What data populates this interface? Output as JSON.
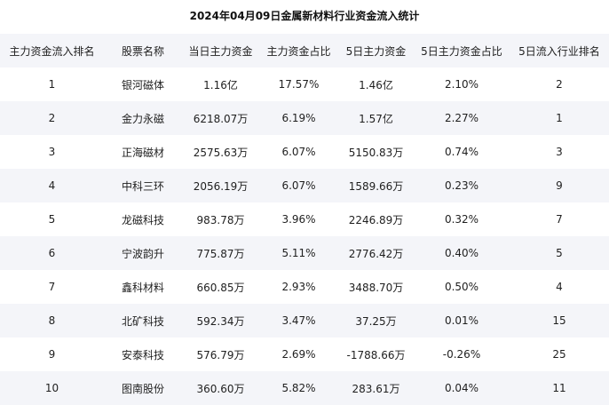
{
  "title": "2024年04月09日金属新材料行业资金流入统计",
  "table": {
    "headers": [
      "主力资金流入排名",
      "股票名称",
      "当日主力资金",
      "主力资金占比",
      "5日主力资金",
      "5日主力资金占比",
      "5日流入行业排名"
    ],
    "rows": [
      [
        "1",
        "银河磁体",
        "1.16亿",
        "17.57%",
        "1.46亿",
        "2.10%",
        "2"
      ],
      [
        "2",
        "金力永磁",
        "6218.07万",
        "6.19%",
        "1.57亿",
        "2.27%",
        "1"
      ],
      [
        "3",
        "正海磁材",
        "2575.63万",
        "6.07%",
        "5150.83万",
        "0.74%",
        "3"
      ],
      [
        "4",
        "中科三环",
        "2056.19万",
        "6.07%",
        "1589.66万",
        "0.23%",
        "9"
      ],
      [
        "5",
        "龙磁科技",
        "983.78万",
        "3.96%",
        "2246.89万",
        "0.32%",
        "7"
      ],
      [
        "6",
        "宁波韵升",
        "775.87万",
        "5.11%",
        "2776.42万",
        "0.40%",
        "5"
      ],
      [
        "7",
        "鑫科材料",
        "660.85万",
        "2.93%",
        "3488.70万",
        "0.50%",
        "4"
      ],
      [
        "8",
        "北矿科技",
        "592.34万",
        "3.47%",
        "37.25万",
        "0.01%",
        "15"
      ],
      [
        "9",
        "安泰科技",
        "576.79万",
        "2.69%",
        "-1788.66万",
        "-0.26%",
        "25"
      ],
      [
        "10",
        "图南股份",
        "360.60万",
        "5.82%",
        "283.61万",
        "0.04%",
        "11"
      ]
    ]
  }
}
